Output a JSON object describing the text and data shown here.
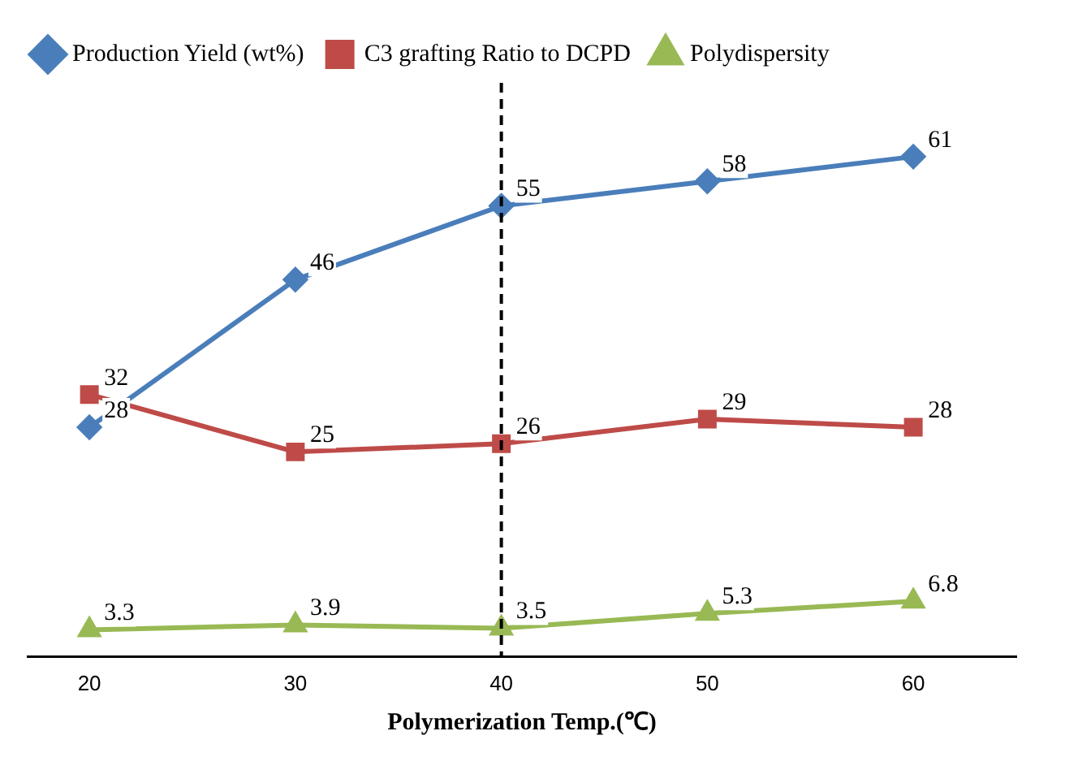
{
  "chart_data": {
    "type": "line",
    "xlabel": "Polymerization Temp.(℃)",
    "x": [
      20,
      30,
      40,
      50,
      60
    ],
    "xlim": [
      17,
      65
    ],
    "xticks": [
      20,
      30,
      40,
      50,
      60
    ],
    "series": [
      {
        "name": "Production Yield (wt%)",
        "color": "#4a7ebb",
        "marker": "diamond",
        "values": [
          28,
          46,
          55,
          58,
          61
        ]
      },
      {
        "name": "C3 grafting Ratio to DCPD",
        "color": "#be4b48",
        "marker": "square",
        "values": [
          32,
          25,
          26,
          29,
          28
        ]
      },
      {
        "name": "Polydispersity",
        "color": "#98b954",
        "marker": "triangle",
        "values": [
          3.3,
          3.9,
          3.5,
          5.3,
          6.8
        ]
      }
    ],
    "ref_lines": [
      {
        "axis": "x",
        "value": 40,
        "line_style": "dashed",
        "color": "#000000"
      }
    ],
    "data_labels": true,
    "grid": false,
    "legend": "top",
    "line_style": "solid"
  }
}
